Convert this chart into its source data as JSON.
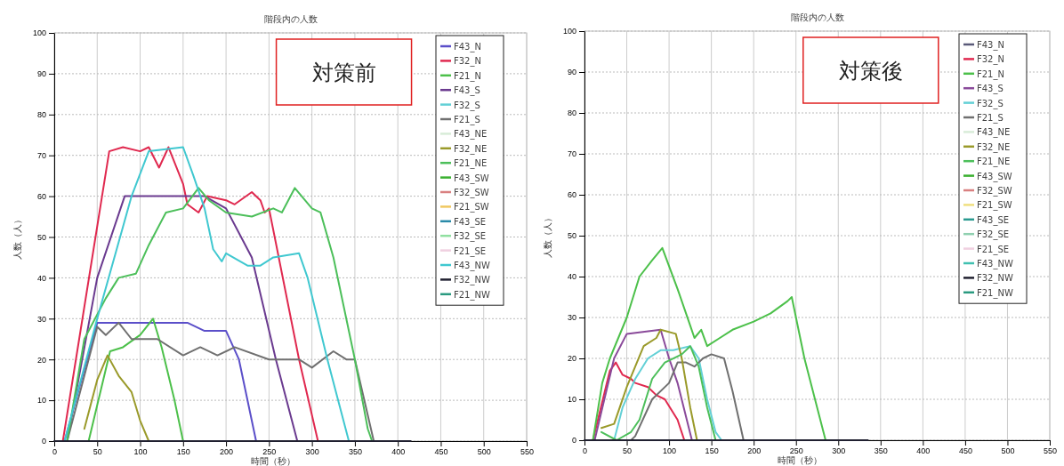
{
  "chart_data": [
    {
      "type": "line",
      "title": "階段内の人数",
      "xlabel": "時間（秒）",
      "ylabel": "人数（人）",
      "xlim": [
        0,
        550
      ],
      "xticks": [
        0,
        50,
        100,
        150,
        200,
        250,
        300,
        350,
        400,
        450,
        500,
        550
      ],
      "ylim": [
        0,
        100
      ],
      "yticks": [
        0,
        10,
        20,
        30,
        40,
        50,
        60,
        70,
        80,
        90,
        100
      ],
      "grid": true,
      "legend": "top right",
      "marker": "none",
      "line_style": "solid",
      "annotations": [
        "対策前"
      ],
      "series": [
        {
          "name": "F43_N",
          "color": "#5b4fc9",
          "x": [
            12,
            50,
            155,
            175,
            200,
            215,
            235
          ],
          "values": [
            0,
            29,
            29,
            27,
            27,
            20,
            0
          ]
        },
        {
          "name": "F32_N",
          "color": "#e0294f",
          "x": [
            10,
            64,
            80,
            100,
            110,
            122,
            133,
            150,
            155,
            168,
            178,
            200,
            210,
            230,
            240,
            245,
            250,
            285,
            307
          ],
          "values": [
            0,
            71,
            72,
            71,
            72,
            67,
            72,
            63,
            58,
            56,
            60,
            59,
            58,
            61,
            59,
            56,
            57,
            20,
            0
          ]
        },
        {
          "name": "F21_N",
          "color": "#4cc04a",
          "x": [
            40,
            65,
            80,
            100,
            115,
            125,
            140,
            150
          ],
          "values": [
            0,
            22,
            23,
            26,
            30,
            23,
            10,
            0
          ]
        },
        {
          "name": "F43_S",
          "color": "#6a3a8f",
          "x": [
            15,
            50,
            82,
            175,
            200,
            230,
            258,
            283
          ],
          "values": [
            0,
            40,
            60,
            60,
            57,
            45,
            20,
            0
          ]
        },
        {
          "name": "F32_S",
          "color": "#63d0d6",
          "values": [
            null
          ]
        },
        {
          "name": "F21_S",
          "color": "#707070",
          "x": [
            15,
            50,
            60,
            75,
            90,
            120,
            150,
            170,
            190,
            210,
            250,
            285,
            300,
            325,
            340,
            350,
            372
          ],
          "values": [
            0,
            28,
            26,
            29,
            25,
            25,
            21,
            23,
            21,
            23,
            20,
            20,
            18,
            22,
            20,
            20,
            0
          ]
        },
        {
          "name": "F43_NE",
          "color": "#d8ecd8",
          "values": [
            null
          ]
        },
        {
          "name": "F32_NE",
          "color": "#9a9a2a",
          "x": [
            35,
            50,
            62,
            75,
            90,
            100,
            110
          ],
          "values": [
            3,
            15,
            21,
            16,
            12,
            5,
            0
          ]
        },
        {
          "name": "F21_NE",
          "color": "#4cbf5a",
          "x": [
            15,
            35,
            60,
            75,
            95,
            110,
            130,
            150,
            168,
            180,
            200,
            230,
            255,
            265,
            280,
            300,
            310,
            325,
            350,
            365,
            370
          ],
          "values": [
            0,
            25,
            35,
            40,
            41,
            48,
            56,
            57,
            62,
            59,
            56,
            55,
            57,
            56,
            62,
            57,
            56,
            45,
            20,
            3,
            0
          ]
        },
        {
          "name": "F43_SW",
          "color": "#3ab030",
          "values": [
            null
          ]
        },
        {
          "name": "F32_SW",
          "color": "#d98080",
          "values": [
            null
          ]
        },
        {
          "name": "F21_SW",
          "color": "#f0c860",
          "values": [
            null
          ]
        },
        {
          "name": "F43_SE",
          "color": "#2a8aa8",
          "values": [
            null
          ]
        },
        {
          "name": "F32_SE",
          "color": "#90e0a0",
          "values": [
            null
          ]
        },
        {
          "name": "F21_SE",
          "color": "#f0d0e0",
          "values": [
            null
          ]
        },
        {
          "name": "F43_NW",
          "color": "#40c8d0",
          "x": [
            12,
            50,
            90,
            110,
            150,
            162,
            175,
            185,
            195,
            200,
            225,
            240,
            255,
            285,
            295,
            318,
            343
          ],
          "values": [
            0,
            30,
            60,
            71,
            72,
            65,
            57,
            47,
            44,
            46,
            43,
            43,
            45,
            46,
            40,
            20,
            0
          ]
        },
        {
          "name": "F32_NW",
          "color": "#202030",
          "x": [
            0,
            415
          ],
          "values": [
            0,
            0
          ]
        },
        {
          "name": "F21_NW",
          "color": "#2a9a80",
          "values": [
            null
          ]
        }
      ]
    },
    {
      "type": "line",
      "title": "階段内の人数",
      "xlabel": "時間（秒）",
      "ylabel": "人数（人）",
      "xlim": [
        0,
        550
      ],
      "xticks": [
        0,
        50,
        100,
        150,
        200,
        250,
        300,
        350,
        400,
        450,
        500,
        550
      ],
      "ylim": [
        0,
        100
      ],
      "yticks": [
        0,
        10,
        20,
        30,
        40,
        50,
        60,
        70,
        80,
        90,
        100
      ],
      "grid": true,
      "legend": "top right",
      "marker": "none",
      "line_style": "solid",
      "annotations": [
        "対策後"
      ],
      "series": [
        {
          "name": "F43_N",
          "color": "#5a5a78",
          "values": [
            null
          ]
        },
        {
          "name": "F32_N",
          "color": "#e0294f",
          "x": [
            10,
            30,
            37,
            45,
            55,
            60,
            75,
            85,
            95,
            110,
            118
          ],
          "values": [
            0,
            17,
            19,
            16,
            15,
            14,
            13,
            11,
            10,
            5,
            0
          ]
        },
        {
          "name": "F21_N",
          "color": "#4cc04a",
          "x": [
            10,
            21,
            30,
            50,
            65,
            80,
            92,
            110,
            125,
            130,
            138,
            145,
            160,
            175,
            200,
            220,
            240,
            245,
            260,
            275,
            285
          ],
          "values": [
            0,
            14,
            20,
            30,
            40,
            44,
            47,
            37,
            28,
            25,
            27,
            23,
            25,
            27,
            29,
            31,
            34,
            35,
            20,
            8,
            0
          ]
        },
        {
          "name": "F43_S",
          "color": "#8a4a9a",
          "x": [
            12,
            35,
            50,
            90,
            100,
            110,
            127
          ],
          "values": [
            0,
            20,
            26,
            27,
            20,
            14,
            0
          ]
        },
        {
          "name": "F32_S",
          "color": "#63d0d6",
          "x": [
            35,
            45,
            60,
            75,
            90,
            105,
            125,
            135,
            145,
            155,
            162
          ],
          "values": [
            0,
            8,
            15,
            20,
            22,
            22,
            23,
            20,
            10,
            2,
            0
          ]
        },
        {
          "name": "F21_S",
          "color": "#707070",
          "x": [
            55,
            60,
            80,
            100,
            110,
            120,
            130,
            140,
            150,
            165,
            175,
            188
          ],
          "values": [
            0,
            1,
            10,
            14,
            19,
            19,
            18,
            20,
            21,
            20,
            12,
            0
          ]
        },
        {
          "name": "F43_NE",
          "color": "#d8ecd8",
          "values": [
            null
          ]
        },
        {
          "name": "F32_NE",
          "color": "#9a9a2a",
          "x": [
            20,
            35,
            50,
            60,
            70,
            85,
            90,
            108,
            115,
            125,
            133
          ],
          "values": [
            3,
            4,
            13,
            18,
            23,
            25,
            27,
            26,
            20,
            8,
            0
          ]
        },
        {
          "name": "F21_NE",
          "color": "#4cbf5a",
          "x": [
            20,
            38,
            55,
            65,
            80,
            95,
            115,
            125,
            135,
            145,
            155
          ],
          "values": [
            2,
            0,
            2,
            5,
            15,
            19,
            21,
            23,
            18,
            8,
            0
          ]
        },
        {
          "name": "F43_SW",
          "color": "#3ab030",
          "values": [
            null
          ]
        },
        {
          "name": "F32_SW",
          "color": "#d98080",
          "values": [
            null
          ]
        },
        {
          "name": "F21_SW",
          "color": "#f0e080",
          "values": [
            null
          ]
        },
        {
          "name": "F43_SE",
          "color": "#2a9a90",
          "values": [
            null
          ]
        },
        {
          "name": "F32_SE",
          "color": "#90d0b0",
          "values": [
            null
          ]
        },
        {
          "name": "F21_SE",
          "color": "#f0d0e0",
          "values": [
            null
          ]
        },
        {
          "name": "F43_NW",
          "color": "#40c0b0",
          "values": [
            null
          ]
        },
        {
          "name": "F32_NW",
          "color": "#202030",
          "x": [
            0,
            335
          ],
          "values": [
            0,
            0
          ]
        },
        {
          "name": "F21_NW",
          "color": "#2a9a80",
          "values": [
            null
          ]
        }
      ]
    }
  ]
}
